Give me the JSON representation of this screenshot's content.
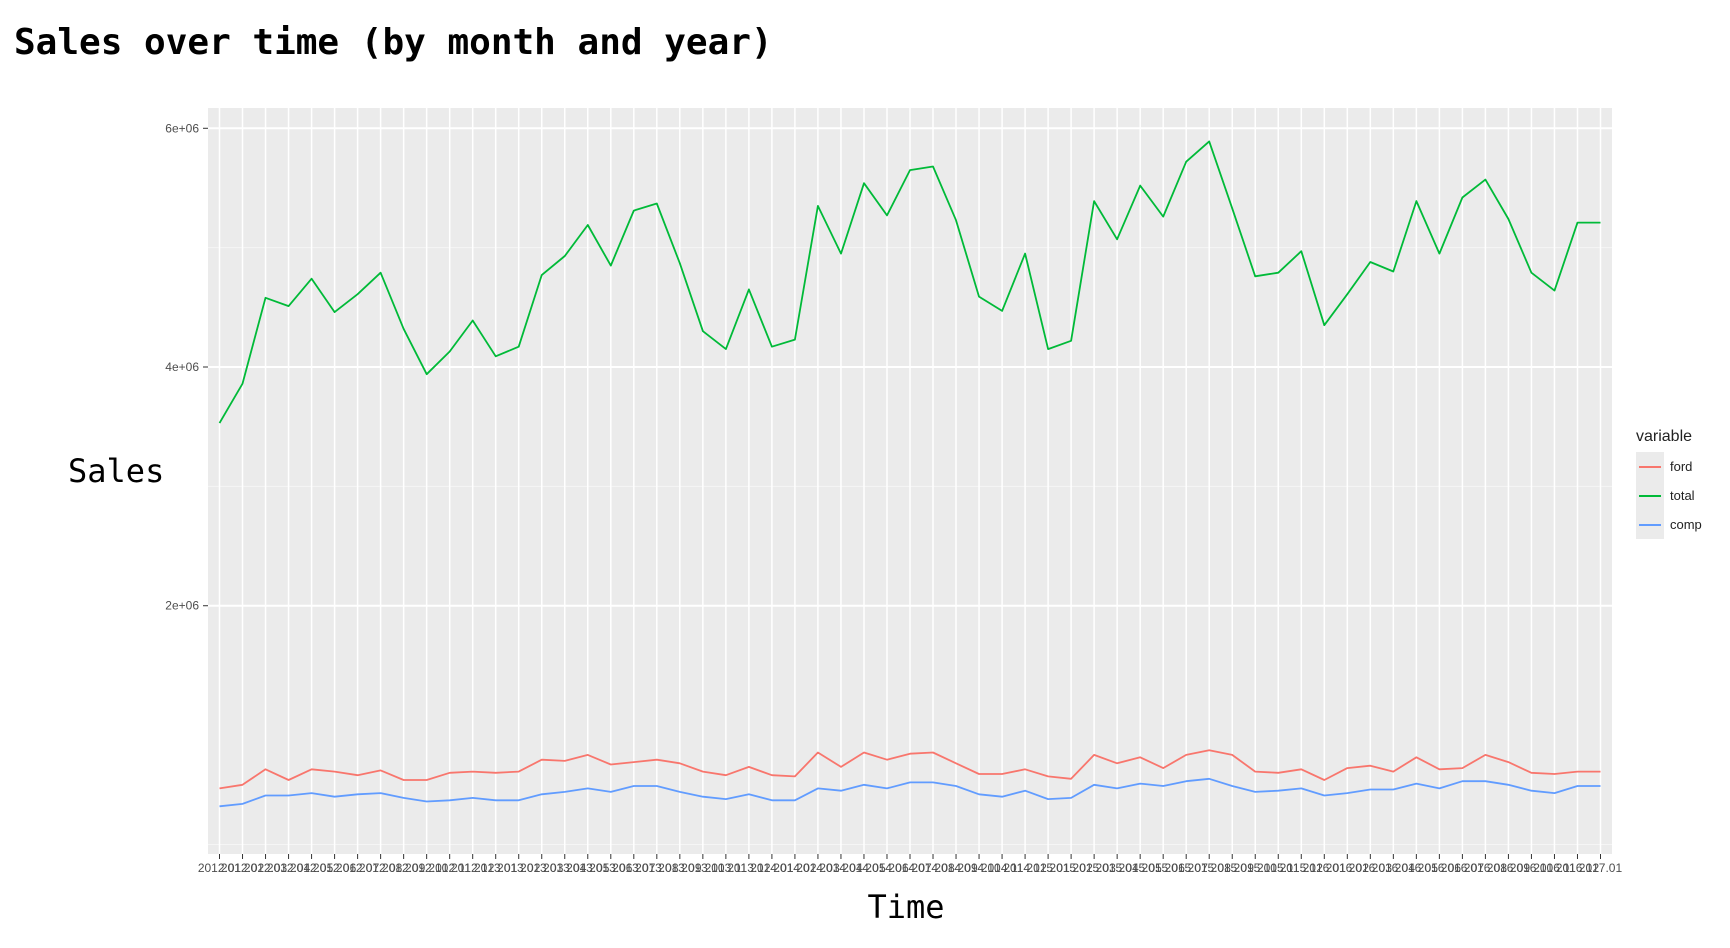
{
  "title": "Sales over time (by month and year)",
  "xlabel": "Time",
  "ylabel": "Sales",
  "chart_data": {
    "type": "line",
    "title": "Sales over time (by month and year)",
    "xlabel": "Time",
    "ylabel": "Sales",
    "ylim": [
      -80000,
      6170000
    ],
    "yticks": [
      2000000,
      4000000,
      6000000
    ],
    "ytick_labels": [
      "2e+06",
      "4e+06",
      "6e+06"
    ],
    "grid": true,
    "legend_position": "right",
    "legend_title": "variable",
    "x": [
      "2012.01",
      "2012.02",
      "2012.03",
      "2012.04",
      "2012.05",
      "2012.06",
      "2012.07",
      "2012.08",
      "2012.09",
      "2012.10",
      "2012.11",
      "2012.12",
      "2013.01",
      "2013.02",
      "2013.03",
      "2013.04",
      "2013.05",
      "2013.06",
      "2013.07",
      "2013.08",
      "2013.09",
      "2013.10",
      "2013.11",
      "2013.12",
      "2014.01",
      "2014.02",
      "2014.03",
      "2014.04",
      "2014.05",
      "2014.06",
      "2014.07",
      "2014.08",
      "2014.09",
      "2014.10",
      "2014.11",
      "2014.12",
      "2015.01",
      "2015.02",
      "2015.03",
      "2015.04",
      "2015.05",
      "2015.06",
      "2015.07",
      "2015.08",
      "2015.09",
      "2015.10",
      "2015.11",
      "2015.12",
      "2016.01",
      "2016.02",
      "2016.03",
      "2016.04",
      "2016.05",
      "2016.06",
      "2016.07",
      "2016.08",
      "2016.09",
      "2016.10",
      "2016.11",
      "2016.12",
      "2017.01"
    ],
    "series": [
      {
        "name": "ford",
        "color": "#F8766D",
        "values": [
          470000,
          500000,
          630000,
          540000,
          630000,
          610000,
          580000,
          620000,
          540000,
          540000,
          600000,
          610000,
          600000,
          610000,
          710000,
          700000,
          750000,
          670000,
          690000,
          710000,
          680000,
          610000,
          580000,
          650000,
          580000,
          570000,
          770000,
          650000,
          770000,
          710000,
          760000,
          770000,
          680000,
          590000,
          590000,
          630000,
          570000,
          550000,
          750000,
          680000,
          730000,
          640000,
          750000,
          790000,
          750000,
          610000,
          600000,
          630000,
          540000,
          640000,
          660000,
          610000,
          730000,
          630000,
          640000,
          750000,
          690000,
          600000,
          590000,
          610000,
          610000
        ]
      },
      {
        "name": "total",
        "color": "#00BA38",
        "values": [
          3530000,
          3860000,
          4580000,
          4510000,
          4740000,
          4460000,
          4610000,
          4790000,
          4320000,
          3940000,
          4130000,
          4390000,
          4090000,
          4170000,
          4770000,
          4930000,
          5190000,
          4850000,
          5310000,
          5370000,
          4870000,
          4300000,
          4150000,
          4650000,
          4170000,
          4230000,
          5350000,
          4950000,
          5540000,
          5270000,
          5650000,
          5680000,
          5230000,
          4590000,
          4470000,
          4950000,
          4150000,
          4220000,
          5390000,
          5070000,
          5520000,
          5260000,
          5720000,
          5890000,
          5330000,
          4760000,
          4790000,
          4970000,
          4350000,
          4610000,
          4880000,
          4800000,
          5390000,
          4950000,
          5420000,
          5570000,
          5240000,
          4790000,
          4640000,
          5210000,
          5210000
        ]
      },
      {
        "name": "comp",
        "color": "#619CFF",
        "values": [
          320000,
          340000,
          410000,
          410000,
          430000,
          400000,
          420000,
          430000,
          390000,
          360000,
          370000,
          390000,
          370000,
          370000,
          420000,
          440000,
          470000,
          440000,
          490000,
          490000,
          440000,
          400000,
          380000,
          420000,
          370000,
          370000,
          470000,
          450000,
          500000,
          470000,
          520000,
          520000,
          490000,
          420000,
          400000,
          450000,
          380000,
          390000,
          500000,
          470000,
          510000,
          490000,
          530000,
          550000,
          490000,
          440000,
          450000,
          470000,
          410000,
          430000,
          460000,
          460000,
          510000,
          470000,
          530000,
          530000,
          500000,
          450000,
          430000,
          490000,
          490000
        ]
      }
    ]
  }
}
